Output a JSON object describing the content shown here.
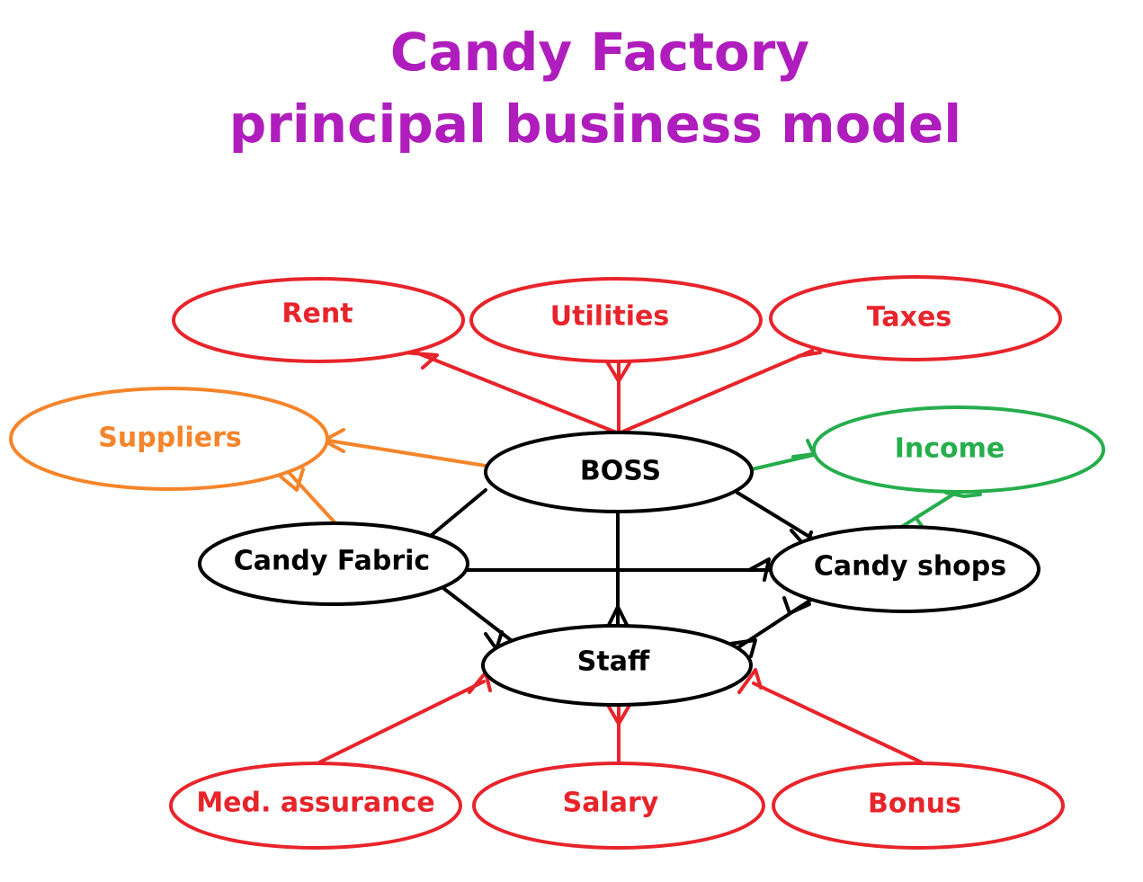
{
  "title": {
    "line1": "Candy Factory",
    "line2": "principal business model"
  },
  "colors": {
    "title": "#b01dbd",
    "expense": "#e8242b",
    "supplier": "#f5842a",
    "income": "#26ad4c",
    "core": "#000000"
  },
  "nodes": {
    "rent": "Rent",
    "utilities": "Utilities",
    "taxes": "Taxes",
    "suppliers": "Suppliers",
    "boss": "BOSS",
    "income": "Income",
    "candy_fabric": "Candy Fabric",
    "candy_shops": "Candy shops",
    "staff": "Staff",
    "med_assurance": "Med. assurance",
    "salary": "Salary",
    "bonus": "Bonus"
  }
}
